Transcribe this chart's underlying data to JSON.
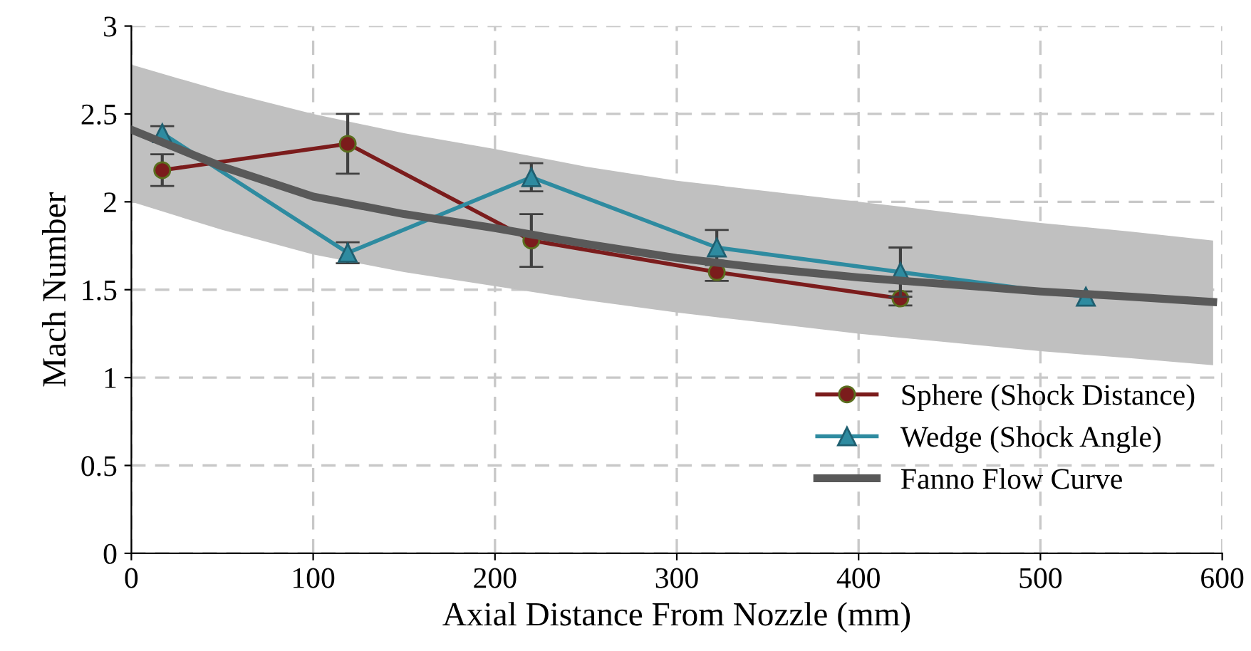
{
  "chart_data": {
    "type": "line",
    "xlabel": "Axial Distance From Nozzle (mm)",
    "ylabel": "Mach Number",
    "xlim": [
      0,
      600
    ],
    "xticks": [
      0,
      100,
      200,
      300,
      400,
      500,
      600
    ],
    "ylim": [
      0,
      3
    ],
    "yticks": [
      0,
      0.5,
      1,
      1.5,
      2,
      2.5,
      3
    ],
    "grid": true,
    "legend": "bottom right",
    "series": [
      {
        "name": "Sphere (Shock Distance)",
        "color": "#7b1c1c",
        "marker": "circle",
        "x": [
          17,
          119,
          220,
          322,
          423
        ],
        "values": [
          2.18,
          2.33,
          1.78,
          1.6,
          1.45
        ],
        "errors": [
          0.09,
          0.17,
          0.15,
          0.05,
          0.04
        ]
      },
      {
        "name": "Wedge (Shock Angle)",
        "color": "#2e8ba0",
        "marker": "triangle",
        "x": [
          17,
          119,
          220,
          322,
          423,
          525
        ],
        "values": [
          2.39,
          1.71,
          2.14,
          1.74,
          1.6,
          1.46
        ],
        "errors": [
          0.04,
          0.06,
          0.08,
          0.1,
          0.14,
          null
        ]
      },
      {
        "name": "Fanno Flow Curve",
        "color": "#595959",
        "marker": "none",
        "x": [
          0,
          50,
          100,
          150,
          200,
          250,
          300,
          350,
          400,
          450,
          500,
          550,
          595
        ],
        "values": [
          2.41,
          2.2,
          2.03,
          1.93,
          1.85,
          1.76,
          1.68,
          1.62,
          1.57,
          1.53,
          1.49,
          1.46,
          1.43
        ],
        "lower": [
          2.0,
          1.84,
          1.7,
          1.6,
          1.52,
          1.44,
          1.37,
          1.31,
          1.25,
          1.2,
          1.15,
          1.11,
          1.07
        ],
        "upper": [
          2.78,
          2.63,
          2.5,
          2.39,
          2.3,
          2.2,
          2.12,
          2.06,
          2.0,
          1.94,
          1.88,
          1.83,
          1.78
        ]
      }
    ]
  }
}
